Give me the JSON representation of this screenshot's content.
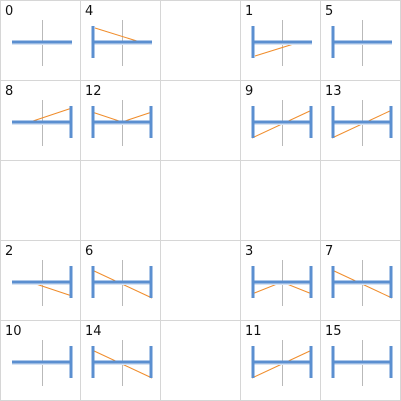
{
  "colors": {
    "background": "#ffffff",
    "grid": "#d6d6d6",
    "center_axis": "#b9b9b9",
    "bar": "#5b8fd0",
    "bar_shadow": "#d7e3f3",
    "diagonal": "#f08c2a",
    "label": "#111111"
  },
  "cells": [
    {
      "label": "0",
      "pattern": {
        "left_stub": false,
        "right_stub": false,
        "diagonal": "none"
      }
    },
    {
      "label": "4",
      "pattern": {
        "left_stub": true,
        "right_stub": false,
        "diagonal": "top-left-to-right"
      }
    },
    {
      "label": "1",
      "pattern": {
        "left_stub": true,
        "right_stub": false,
        "diagonal": "bottom-left-to-right"
      }
    },
    {
      "label": "5",
      "pattern": {
        "left_stub": true,
        "right_stub": false,
        "diagonal": "none"
      }
    },
    {
      "label": "8",
      "pattern": {
        "left_stub": false,
        "right_stub": true,
        "diagonal": "left-to-top-right"
      }
    },
    {
      "label": "12",
      "pattern": {
        "left_stub": true,
        "right_stub": true,
        "diagonal": "v"
      }
    },
    {
      "label": "9",
      "pattern": {
        "left_stub": true,
        "right_stub": true,
        "diagonal": "bottom-left-to-top-right"
      }
    },
    {
      "label": "13",
      "pattern": {
        "left_stub": true,
        "right_stub": true,
        "diagonal": "bottom-left-to-top-right"
      }
    },
    {
      "label": "2",
      "pattern": {
        "left_stub": false,
        "right_stub": true,
        "diagonal": "left-to-bottom-right"
      }
    },
    {
      "label": "6",
      "pattern": {
        "left_stub": true,
        "right_stub": true,
        "diagonal": "top-left-to-bottom-right"
      }
    },
    {
      "label": "3",
      "pattern": {
        "left_stub": true,
        "right_stub": true,
        "diagonal": "caret"
      }
    },
    {
      "label": "7",
      "pattern": {
        "left_stub": true,
        "right_stub": true,
        "diagonal": "top-left-to-bottom-right"
      }
    },
    {
      "label": "10",
      "pattern": {
        "left_stub": false,
        "right_stub": true,
        "diagonal": "none"
      }
    },
    {
      "label": "14",
      "pattern": {
        "left_stub": true,
        "right_stub": true,
        "diagonal": "top-left-to-bottom-right"
      }
    },
    {
      "label": "11",
      "pattern": {
        "left_stub": true,
        "right_stub": true,
        "diagonal": "bottom-left-to-top-right"
      }
    },
    {
      "label": "15",
      "pattern": {
        "left_stub": true,
        "right_stub": true,
        "diagonal": "none"
      }
    }
  ]
}
